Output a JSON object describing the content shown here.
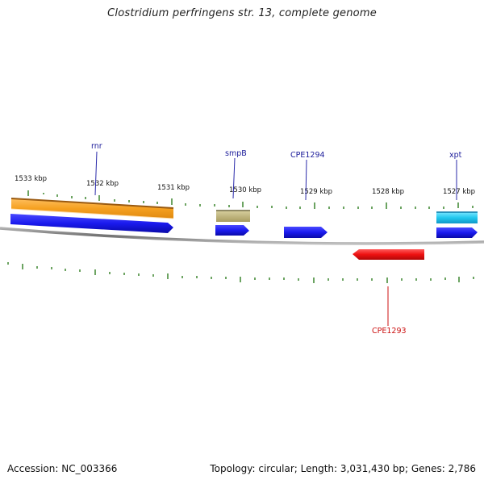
{
  "title": "Clostridium perfringens str. 13, complete genome",
  "footer": {
    "accession": "Accession: NC_003366",
    "summary": "Topology: circular; Length: 3,031,430 bp; Genes: 2,786"
  },
  "colors": {
    "backbone": "#8a8a8a",
    "tick": "#2e7d1f",
    "forward_cds": "#1a1aee",
    "reverse_cds": "#ee1111",
    "rrna": "#f0a020",
    "rrna_edge": "#9a5a10",
    "misc_rna": "#b8b070",
    "trna": "#22c8ee",
    "gene_label": "#1a1a99",
    "reverse_label": "#cc1111"
  },
  "scale_labels": [
    "1533 kbp",
    "1532 kbp",
    "1531 kbp",
    "1530 kbp",
    "1529 kbp",
    "1528 kbp",
    "1527 kbp"
  ],
  "genes": [
    {
      "name": "rnr",
      "type": "rRNA"
    },
    {
      "name": "smpB",
      "type": "misc"
    },
    {
      "name": "CPE1294",
      "type": "CDS"
    },
    {
      "name": "xpt",
      "type": "tRNA"
    },
    {
      "name": "CPE1293",
      "type": "CDS",
      "strand": "reverse"
    }
  ]
}
